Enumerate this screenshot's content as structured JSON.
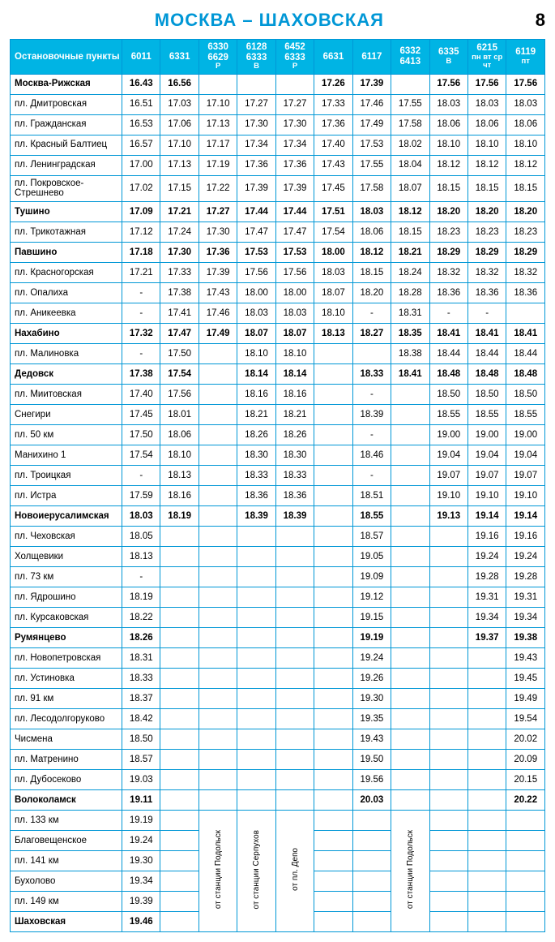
{
  "page": {
    "title": "МОСКВА – ШАХОВСКАЯ",
    "number": "8"
  },
  "header": {
    "stopsLabel": "Остановочные пункты",
    "trains": [
      {
        "num": "6011",
        "note": ""
      },
      {
        "num": "6331",
        "note": ""
      },
      {
        "num": "6330 6629",
        "note": "Р"
      },
      {
        "num": "6128 6333",
        "note": "В"
      },
      {
        "num": "6452 6333",
        "note": "Р"
      },
      {
        "num": "6631",
        "note": ""
      },
      {
        "num": "6117",
        "note": ""
      },
      {
        "num": "6332 6413",
        "note": ""
      },
      {
        "num": "6335",
        "note": "В"
      },
      {
        "num": "6215",
        "note": "пн вт ср чт"
      },
      {
        "num": "6119",
        "note": "пт"
      }
    ]
  },
  "footnotes": {
    "c3": "от станции Подольск",
    "c4": "от станции Серпухов",
    "c5": "от пл. Депо",
    "c8": "от станции Подольск"
  },
  "rows": [
    {
      "bold": true,
      "stop": "Москва-Рижская",
      "t": [
        "16.43",
        "16.56",
        "",
        "",
        "",
        "17.26",
        "17.39",
        "",
        "17.56",
        "17.56",
        "17.56"
      ]
    },
    {
      "bold": false,
      "stop": "пл. Дмитровская",
      "t": [
        "16.51",
        "17.03",
        "17.10",
        "17.27",
        "17.27",
        "17.33",
        "17.46",
        "17.55",
        "18.03",
        "18.03",
        "18.03"
      ]
    },
    {
      "bold": false,
      "stop": "пл. Гражданская",
      "t": [
        "16.53",
        "17.06",
        "17.13",
        "17.30",
        "17.30",
        "17.36",
        "17.49",
        "17.58",
        "18.06",
        "18.06",
        "18.06"
      ]
    },
    {
      "bold": false,
      "stop": "пл. Красный Балтиец",
      "t": [
        "16.57",
        "17.10",
        "17.17",
        "17.34",
        "17.34",
        "17.40",
        "17.53",
        "18.02",
        "18.10",
        "18.10",
        "18.10"
      ]
    },
    {
      "bold": false,
      "stop": "пл. Ленинградская",
      "t": [
        "17.00",
        "17.13",
        "17.19",
        "17.36",
        "17.36",
        "17.43",
        "17.55",
        "18.04",
        "18.12",
        "18.12",
        "18.12"
      ]
    },
    {
      "bold": false,
      "stop": "пл. Покровское-Стрешнево",
      "t": [
        "17.02",
        "17.15",
        "17.22",
        "17.39",
        "17.39",
        "17.45",
        "17.58",
        "18.07",
        "18.15",
        "18.15",
        "18.15"
      ]
    },
    {
      "bold": true,
      "stop": "Тушино",
      "t": [
        "17.09",
        "17.21",
        "17.27",
        "17.44",
        "17.44",
        "17.51",
        "18.03",
        "18.12",
        "18.20",
        "18.20",
        "18.20"
      ]
    },
    {
      "bold": false,
      "stop": "пл. Трикотажная",
      "t": [
        "17.12",
        "17.24",
        "17.30",
        "17.47",
        "17.47",
        "17.54",
        "18.06",
        "18.15",
        "18.23",
        "18.23",
        "18.23"
      ]
    },
    {
      "bold": true,
      "stop": "Павшино",
      "t": [
        "17.18",
        "17.30",
        "17.36",
        "17.53",
        "17.53",
        "18.00",
        "18.12",
        "18.21",
        "18.29",
        "18.29",
        "18.29"
      ]
    },
    {
      "bold": false,
      "stop": "пл. Красногорская",
      "t": [
        "17.21",
        "17.33",
        "17.39",
        "17.56",
        "17.56",
        "18.03",
        "18.15",
        "18.24",
        "18.32",
        "18.32",
        "18.32"
      ]
    },
    {
      "bold": false,
      "stop": "пл. Опалиха",
      "t": [
        "-",
        "17.38",
        "17.43",
        "18.00",
        "18.00",
        "18.07",
        "18.20",
        "18.28",
        "18.36",
        "18.36",
        "18.36"
      ]
    },
    {
      "bold": false,
      "stop": "пл. Аникеевка",
      "t": [
        "-",
        "17.41",
        "17.46",
        "18.03",
        "18.03",
        "18.10",
        "-",
        "18.31",
        "-",
        "-",
        ""
      ]
    },
    {
      "bold": true,
      "stop": "Нахабино",
      "t": [
        "17.32",
        "17.47",
        "17.49",
        "18.07",
        "18.07",
        "18.13",
        "18.27",
        "18.35",
        "18.41",
        "18.41",
        "18.41"
      ]
    },
    {
      "bold": false,
      "stop": "пл. Малиновка",
      "t": [
        "-",
        "17.50",
        "",
        "18.10",
        "18.10",
        "",
        "",
        "18.38",
        "18.44",
        "18.44",
        "18.44"
      ]
    },
    {
      "bold": true,
      "stop": "Дедовск",
      "t": [
        "17.38",
        "17.54",
        "",
        "18.14",
        "18.14",
        "",
        "18.33",
        "18.41",
        "18.48",
        "18.48",
        "18.48"
      ]
    },
    {
      "bold": false,
      "stop": "пл. Миитовская",
      "t": [
        "17.40",
        "17.56",
        "",
        "18.16",
        "18.16",
        "",
        "-",
        "",
        "18.50",
        "18.50",
        "18.50"
      ]
    },
    {
      "bold": false,
      "stop": "Снегири",
      "t": [
        "17.45",
        "18.01",
        "",
        "18.21",
        "18.21",
        "",
        "18.39",
        "",
        "18.55",
        "18.55",
        "18.55"
      ]
    },
    {
      "bold": false,
      "stop": "пл. 50 км",
      "t": [
        "17.50",
        "18.06",
        "",
        "18.26",
        "18.26",
        "",
        "-",
        "",
        "19.00",
        "19.00",
        "19.00"
      ]
    },
    {
      "bold": false,
      "stop": "Манихино 1",
      "t": [
        "17.54",
        "18.10",
        "",
        "18.30",
        "18.30",
        "",
        "18.46",
        "",
        "19.04",
        "19.04",
        "19.04"
      ]
    },
    {
      "bold": false,
      "stop": "пл. Троицкая",
      "t": [
        "-",
        "18.13",
        "",
        "18.33",
        "18.33",
        "",
        "-",
        "",
        "19.07",
        "19.07",
        "19.07"
      ]
    },
    {
      "bold": false,
      "stop": "пл. Истра",
      "t": [
        "17.59",
        "18.16",
        "",
        "18.36",
        "18.36",
        "",
        "18.51",
        "",
        "19.10",
        "19.10",
        "19.10"
      ]
    },
    {
      "bold": true,
      "stop": "Новоиерусалимская",
      "t": [
        "18.03",
        "18.19",
        "",
        "18.39",
        "18.39",
        "",
        "18.55",
        "",
        "19.13",
        "19.14",
        "19.14"
      ]
    },
    {
      "bold": false,
      "stop": "пл. Чеховская",
      "t": [
        "18.05",
        "",
        "",
        "",
        "",
        "",
        "18.57",
        "",
        "",
        "19.16",
        "19.16"
      ]
    },
    {
      "bold": false,
      "stop": "Холщевики",
      "t": [
        "18.13",
        "",
        "",
        "",
        "",
        "",
        "19.05",
        "",
        "",
        "19.24",
        "19.24"
      ]
    },
    {
      "bold": false,
      "stop": "пл. 73 км",
      "t": [
        "-",
        "",
        "",
        "",
        "",
        "",
        "19.09",
        "",
        "",
        "19.28",
        "19.28"
      ]
    },
    {
      "bold": false,
      "stop": "пл. Ядрошино",
      "t": [
        "18.19",
        "",
        "",
        "",
        "",
        "",
        "19.12",
        "",
        "",
        "19.31",
        "19.31"
      ]
    },
    {
      "bold": false,
      "stop": "пл. Курсаковская",
      "t": [
        "18.22",
        "",
        "",
        "",
        "",
        "",
        "19.15",
        "",
        "",
        "19.34",
        "19.34"
      ]
    },
    {
      "bold": true,
      "stop": "Румянцево",
      "t": [
        "18.26",
        "",
        "",
        "",
        "",
        "",
        "19.19",
        "",
        "",
        "19.37",
        "19.38"
      ]
    },
    {
      "bold": false,
      "stop": "пл. Новопетровская",
      "t": [
        "18.31",
        "",
        "",
        "",
        "",
        "",
        "19.24",
        "",
        "",
        "",
        "19.43"
      ]
    },
    {
      "bold": false,
      "stop": "пл. Устиновка",
      "t": [
        "18.33",
        "",
        "",
        "",
        "",
        "",
        "19.26",
        "",
        "",
        "",
        "19.45"
      ]
    },
    {
      "bold": false,
      "stop": "пл. 91 км",
      "t": [
        "18.37",
        "",
        "",
        "",
        "",
        "",
        "19.30",
        "",
        "",
        "",
        "19.49"
      ]
    },
    {
      "bold": false,
      "stop": "пл. Лесодолгоруково",
      "t": [
        "18.42",
        "",
        "",
        "",
        "",
        "",
        "19.35",
        "",
        "",
        "",
        "19.54"
      ]
    },
    {
      "bold": false,
      "stop": "Чисмена",
      "t": [
        "18.50",
        "",
        "",
        "",
        "",
        "",
        "19.43",
        "",
        "",
        "",
        "20.02"
      ]
    },
    {
      "bold": false,
      "stop": "пл. Матренино",
      "t": [
        "18.57",
        "",
        "",
        "",
        "",
        "",
        "19.50",
        "",
        "",
        "",
        "20.09"
      ]
    },
    {
      "bold": false,
      "stop": "пл. Дубосеково",
      "t": [
        "19.03",
        "",
        "",
        "",
        "",
        "",
        "19.56",
        "",
        "",
        "",
        "20.15"
      ]
    },
    {
      "bold": true,
      "stop": "Волоколамск",
      "t": [
        "19.11",
        "",
        "",
        "",
        "",
        "",
        "20.03",
        "",
        "",
        "",
        "20.22"
      ]
    },
    {
      "bold": false,
      "stop": "пл. 133 км",
      "t": [
        "19.19",
        "",
        "FN3",
        "FN4",
        "FN5",
        "",
        "",
        "FN8",
        "",
        "",
        ""
      ]
    },
    {
      "bold": false,
      "stop": "Благовещенское",
      "t": [
        "19.24",
        "",
        "",
        "",
        "",
        "",
        "",
        "",
        "",
        "",
        ""
      ]
    },
    {
      "bold": false,
      "stop": "пл. 141 км",
      "t": [
        "19.30",
        "",
        "",
        "",
        "",
        "",
        "",
        "",
        "",
        "",
        ""
      ]
    },
    {
      "bold": false,
      "stop": "Бухолово",
      "t": [
        "19.34",
        "",
        "",
        "",
        "",
        "",
        "",
        "",
        "",
        "",
        ""
      ]
    },
    {
      "bold": false,
      "stop": "пл. 149 км",
      "t": [
        "19.39",
        "",
        "",
        "",
        "",
        "",
        "",
        "",
        "",
        "",
        ""
      ]
    },
    {
      "bold": true,
      "stop": "Шаховская",
      "t": [
        "19.46",
        "",
        "",
        "",
        "",
        "",
        "",
        "",
        "",
        "",
        ""
      ]
    }
  ]
}
